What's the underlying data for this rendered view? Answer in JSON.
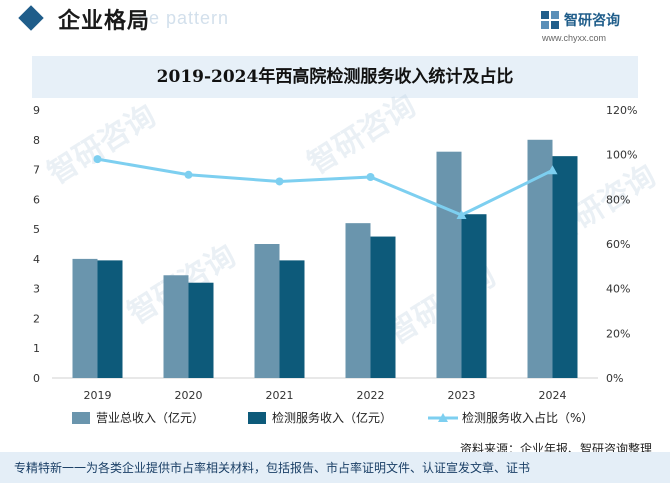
{
  "header": {
    "title": "企业格局",
    "bg_text": "ne pattern",
    "brand_name": "智研咨询",
    "brand_url": "www.chyxx.com"
  },
  "colors": {
    "revenue_total": "#6a95ad",
    "testing_revenue": "#0d5a7a",
    "share_line": "#7dcff0",
    "accent": "#1f5d8a",
    "title_band": "#e7f0f8",
    "footer_band": "#e4eef7"
  },
  "source": "资料来源：企业年报、智研咨询整理",
  "footer": "专精特新一一为各类企业提供市占率相关材料，包括报告、市占率证明文件、认证宣发文章、证书",
  "watermark": "智研咨询",
  "chart_data": {
    "type": "bar",
    "title": "2019-2024年西高院检测服务收入统计及占比",
    "categories": [
      "2019",
      "2020",
      "2021",
      "2022",
      "2023",
      "2024"
    ],
    "series": [
      {
        "name": "营业总收入（亿元）",
        "type": "bar",
        "axis": "left",
        "values": [
          4.0,
          3.45,
          4.5,
          5.2,
          7.6,
          8.0
        ]
      },
      {
        "name": "检测服务收入（亿元）",
        "type": "bar",
        "axis": "left",
        "values": [
          3.95,
          3.2,
          3.95,
          4.75,
          5.5,
          7.45
        ]
      },
      {
        "name": "检测服务收入占比（%）",
        "type": "line",
        "axis": "right",
        "values": [
          98,
          91,
          88,
          90,
          73,
          93
        ]
      }
    ],
    "y_left": {
      "min": 0,
      "max": 9,
      "ticks": [
        "0",
        "1",
        "2",
        "3",
        "4",
        "5",
        "6",
        "7",
        "8",
        "9"
      ]
    },
    "y_right": {
      "min": 0,
      "max": 120,
      "ticks": [
        "0%",
        "20%",
        "40%",
        "60%",
        "80%",
        "100%",
        "120%"
      ]
    },
    "grid": false,
    "legend_position": "bottom"
  }
}
